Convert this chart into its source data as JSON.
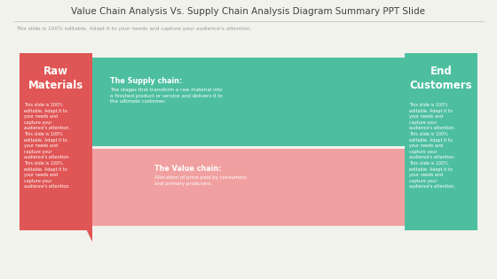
{
  "title": "Value Chain Analysis Vs. Supply Chain Analysis Diagram Summary PPT Slide",
  "subtitle": "This slide is 100% editable. Adapt it to your needs and capture your audience's attention.",
  "bg_color": "#f2f2ed",
  "title_color": "#404040",
  "subtitle_color": "#999999",
  "left_box_color": "#e05555",
  "right_box_color": "#4dbf9f",
  "top_arrow_color": "#4dbf9f",
  "bottom_arrow_body_color": "#f0a0a0",
  "bottom_arrow_head_color": "#e05555",
  "left_box_title": "Raw\nMaterials",
  "right_box_title": "End\nCustomers",
  "supply_chain_title": "The Supply chain:",
  "supply_chain_body": "The stages that transform a raw material into\na finished product or service and delivers it to\nthe ultimate customer.",
  "value_chain_title": "The Value chain:",
  "value_chain_body": "Allocation of price paid by consumers\nand primary producers.",
  "body_text_lines": [
    "This slide is 100%",
    "editable. Adapt it to",
    "your needs and",
    "capture your",
    "audience's attention.",
    "This slide is 100%",
    "editable. Adapt it to",
    "your needs and",
    "capture your",
    "audience's attention.",
    "This slide is 100%",
    "editable. Adapt it to",
    "your needs and",
    "capture your",
    "audience's attention."
  ],
  "white_color": "#ffffff"
}
